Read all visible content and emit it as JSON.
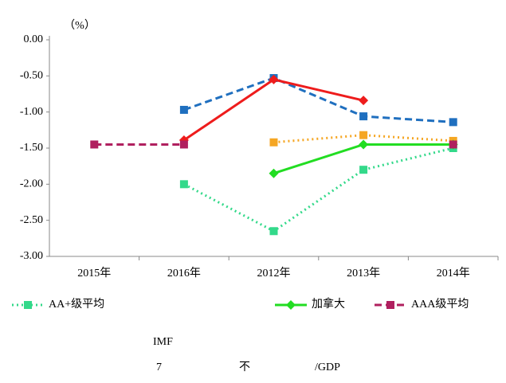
{
  "chart_data": {
    "type": "line",
    "y_unit_label": "（%）",
    "categories": [
      "2015年",
      "2016年",
      "2012年",
      "2013年",
      "2014年"
    ],
    "ylim": [
      -3,
      0
    ],
    "yticks": [
      {
        "value": 0,
        "label": "0.00"
      },
      {
        "value": -0.5,
        "label": "-0.50"
      },
      {
        "value": -1,
        "label": "-1.00"
      },
      {
        "value": -1.5,
        "label": "-1.50"
      },
      {
        "value": -2,
        "label": "-2.00"
      },
      {
        "value": -2.5,
        "label": "-2.50"
      },
      {
        "value": -3,
        "label": "-3.00"
      }
    ],
    "grid": false,
    "series": [
      {
        "color": "#1f6fbf",
        "style": "dashed",
        "marker": "square",
        "values": [
          null,
          -0.97,
          -0.53,
          -1.06,
          -1.14
        ]
      },
      {
        "color": "#ee1c1c",
        "style": "solid",
        "marker": "diamond",
        "values": [
          null,
          -1.39,
          -0.55,
          -0.84,
          null
        ]
      },
      {
        "color": "#f5a623",
        "style": "dotted",
        "marker": "square",
        "values": [
          null,
          null,
          -1.42,
          -1.32,
          -1.4
        ]
      },
      {
        "name": "AA+级平均",
        "color": "#33d98a",
        "style": "dotted",
        "marker": "square",
        "values": [
          null,
          -2.0,
          -2.65,
          -1.8,
          -1.5
        ]
      },
      {
        "name": "加拿大",
        "color": "#22dd22",
        "style": "solid",
        "marker": "diamond",
        "values": [
          null,
          null,
          -1.85,
          -1.45,
          -1.45
        ]
      },
      {
        "name": "AAA级平均",
        "color": "#b0205f",
        "style": "dashed",
        "marker": "square",
        "values": [
          -1.45,
          -1.45,
          null,
          null,
          -1.45
        ]
      }
    ],
    "notes": [
      "IMF",
      "7",
      "不",
      "/GDP"
    ]
  }
}
